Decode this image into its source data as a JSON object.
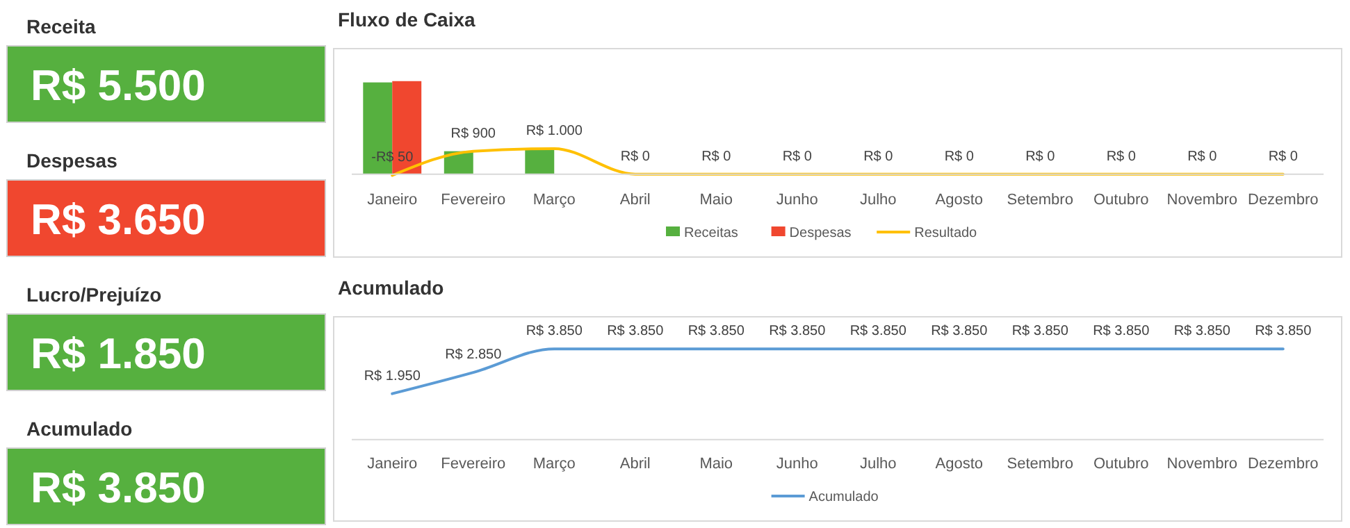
{
  "chart_data": [
    {
      "type": "other",
      "title": "Receita",
      "annotations": [
        "R$ 5.500"
      ],
      "color": "#56b03f"
    },
    {
      "type": "other",
      "title": "Despesas",
      "annotations": [
        "R$ 3.650"
      ],
      "color": "#f0472f"
    },
    {
      "type": "other",
      "title": "Lucro/Prejuízo",
      "annotations": [
        "R$ 1.850"
      ],
      "color": "#56b03f"
    },
    {
      "type": "other",
      "title": "Acumulado",
      "annotations": [
        "R$ 3.850"
      ],
      "color": "#56b03f"
    },
    {
      "type": "bar",
      "title": "Fluxo de Caixa",
      "categories": [
        "Janeiro",
        "Fevereiro",
        "Março",
        "Abril",
        "Maio",
        "Junho",
        "Julho",
        "Agosto",
        "Setembro",
        "Outubro",
        "Novembro",
        "Dezembro"
      ],
      "tick_labels": "x",
      "legend": "bottom",
      "marker": "none",
      "series": [
        {
          "name": "Receitas",
          "color": "#56b03f",
          "values": [
            3600,
            900,
            1000,
            0,
            0,
            0,
            0,
            0,
            0,
            0,
            0,
            0
          ]
        },
        {
          "name": "Despesas",
          "color": "#f0472f",
          "values": [
            3650,
            0,
            0,
            0,
            0,
            0,
            0,
            0,
            0,
            0,
            0,
            0
          ]
        },
        {
          "name": "Resultado",
          "type": "line",
          "color": "#ffc000",
          "values": [
            -50,
            900,
            1000,
            0,
            0,
            0,
            0,
            0,
            0,
            0,
            0,
            0
          ],
          "value_labels": [
            "-R$ 50",
            "R$ 900",
            "R$ 1.000",
            "R$ 0",
            "R$ 0",
            "R$ 0",
            "R$ 0",
            "R$ 0",
            "R$ 0",
            "R$ 0",
            "R$ 0",
            "R$ 0"
          ]
        }
      ]
    },
    {
      "type": "line",
      "title": "Acumulado",
      "categories": [
        "Janeiro",
        "Fevereiro",
        "Março",
        "Abril",
        "Maio",
        "Junho",
        "Julho",
        "Agosto",
        "Setembro",
        "Outubro",
        "Novembro",
        "Dezembro"
      ],
      "tick_labels": "x",
      "legend": "bottom",
      "marker": "none",
      "series": [
        {
          "name": "Acumulado",
          "color": "#5b9bd5",
          "values": [
            1950,
            2850,
            3850,
            3850,
            3850,
            3850,
            3850,
            3850,
            3850,
            3850,
            3850,
            3850
          ],
          "value_labels": [
            "R$ 1.950",
            "R$ 2.850",
            "R$ 3.850",
            "R$ 3.850",
            "R$ 3.850",
            "R$ 3.850",
            "R$ 3.850",
            "R$ 3.850",
            "R$ 3.850",
            "R$ 3.850",
            "R$ 3.850",
            "R$ 3.850"
          ]
        }
      ]
    }
  ]
}
